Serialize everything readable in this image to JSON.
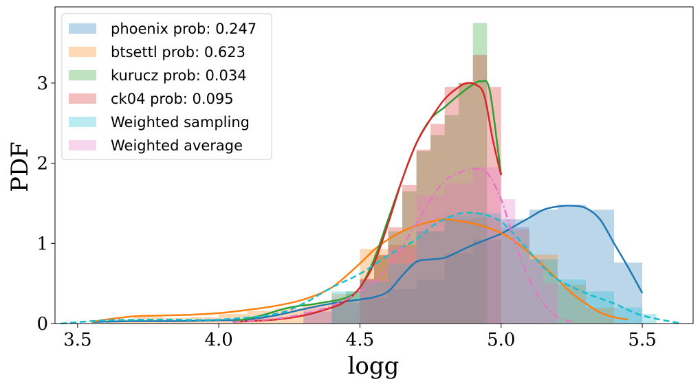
{
  "chart_data": {
    "type": "histogram+kde",
    "xlabel": "logg",
    "ylabel": "PDF",
    "xlim": [
      3.42,
      5.68
    ],
    "ylim": [
      0,
      3.95
    ],
    "xticks": [
      "3.5",
      "4.0",
      "4.5",
      "5.0",
      "5.5"
    ],
    "xtick_values": [
      3.5,
      4.0,
      4.5,
      5.0,
      5.5
    ],
    "yticks": [
      "0",
      "1",
      "2",
      "3"
    ],
    "ytick_values": [
      0,
      1,
      2,
      3
    ],
    "grid": false,
    "legend_position": "top-left",
    "series": [
      {
        "name": "phoenix prob: 0.247",
        "color": "#1f77b4",
        "linestyle": "solid",
        "hist_edges": [
          4.3,
          4.4,
          4.5,
          4.6,
          4.7,
          4.8,
          4.9,
          5.0,
          5.1,
          5.2,
          5.3,
          5.4,
          5.5
        ],
        "hist_heights": [
          0.15,
          0.26,
          0.32,
          0.43,
          0.55,
          0.88,
          1.05,
          1.3,
          1.42,
          1.48,
          1.42,
          0.76
        ],
        "kde_x": [
          3.55,
          3.7,
          3.85,
          4.0,
          4.1,
          4.2,
          4.3,
          4.4,
          4.5,
          4.55,
          4.6,
          4.65,
          4.7,
          4.75,
          4.8,
          4.85,
          4.9,
          4.95,
          5.0,
          5.05,
          5.1,
          5.15,
          5.2,
          5.25,
          5.3,
          5.35,
          5.4,
          5.45,
          5.5
        ],
        "kde_y": [
          0.02,
          0.03,
          0.03,
          0.04,
          0.05,
          0.1,
          0.18,
          0.25,
          0.3,
          0.33,
          0.4,
          0.6,
          0.77,
          0.8,
          0.82,
          0.9,
          0.98,
          1.05,
          1.12,
          1.22,
          1.32,
          1.42,
          1.46,
          1.47,
          1.44,
          1.3,
          1.0,
          0.7,
          0.38
        ]
      },
      {
        "name": "btsettl prob: 0.623",
        "color": "#ff7f0e",
        "linestyle": "solid",
        "hist_edges": [
          3.6,
          3.7,
          3.8,
          3.9,
          4.0,
          4.1,
          4.2,
          4.3,
          4.4,
          4.5,
          4.6,
          4.7,
          4.8,
          4.9,
          5.0,
          5.1,
          5.2,
          5.3,
          5.4
        ],
        "hist_heights": [
          0.05,
          0.08,
          0.07,
          0.08,
          0.12,
          0.16,
          0.19,
          0.24,
          0.37,
          0.93,
          0.98,
          1.15,
          1.3,
          1.32,
          1.17,
          0.86,
          0.48,
          0.2,
          0.05
        ],
        "kde_x": [
          3.55,
          3.6,
          3.7,
          3.8,
          3.9,
          4.0,
          4.1,
          4.2,
          4.3,
          4.4,
          4.5,
          4.55,
          4.6,
          4.65,
          4.7,
          4.75,
          4.8,
          4.85,
          4.9,
          4.95,
          5.0,
          5.05,
          5.1,
          5.15,
          5.2,
          5.25,
          5.3,
          5.35,
          5.4,
          5.45
        ],
        "kde_y": [
          0.02,
          0.05,
          0.09,
          0.1,
          0.11,
          0.13,
          0.17,
          0.22,
          0.3,
          0.45,
          0.75,
          0.92,
          1.05,
          1.15,
          1.22,
          1.27,
          1.3,
          1.28,
          1.25,
          1.2,
          1.13,
          1.02,
          0.88,
          0.72,
          0.55,
          0.38,
          0.25,
          0.14,
          0.08,
          0.05
        ]
      },
      {
        "name": "kurucz prob: 0.034",
        "color": "#2ca02c",
        "linestyle": "solid",
        "hist_edges": [
          4.4,
          4.45,
          4.5,
          4.55,
          4.6,
          4.65,
          4.7,
          4.75,
          4.8,
          4.85,
          4.9,
          4.95
        ],
        "hist_heights": [
          0.25,
          0.4,
          0.55,
          0.85,
          1.15,
          1.65,
          2.15,
          2.35,
          2.6,
          3.0,
          3.75
        ],
        "kde_x": [
          4.05,
          4.15,
          4.25,
          4.35,
          4.45,
          4.5,
          4.55,
          4.6,
          4.65,
          4.7,
          4.75,
          4.8,
          4.85,
          4.9,
          4.93,
          4.96,
          5.0
        ],
        "kde_y": [
          0.02,
          0.1,
          0.2,
          0.25,
          0.32,
          0.45,
          0.8,
          1.3,
          1.8,
          2.25,
          2.55,
          2.7,
          2.85,
          2.98,
          3.02,
          2.9,
          1.85
        ]
      },
      {
        "name": "ck04 prob: 0.095",
        "color": "#d62728",
        "linestyle": "solid",
        "hist_edges": [
          4.5,
          4.55,
          4.6,
          4.65,
          4.7,
          4.75,
          4.8,
          4.85,
          4.9,
          4.95,
          5.0
        ],
        "hist_heights": [
          0.56,
          0.86,
          1.2,
          1.73,
          2.17,
          2.49,
          2.95,
          3.0,
          3.35,
          2.95
        ],
        "kde_x": [
          4.05,
          4.2,
          4.3,
          4.4,
          4.45,
          4.5,
          4.55,
          4.6,
          4.65,
          4.7,
          4.75,
          4.8,
          4.85,
          4.88,
          4.91,
          4.94,
          4.97,
          5.0
        ],
        "kde_y": [
          0.02,
          0.05,
          0.1,
          0.2,
          0.28,
          0.45,
          0.75,
          1.25,
          1.8,
          2.25,
          2.55,
          2.8,
          2.95,
          3.0,
          2.98,
          2.85,
          2.3,
          1.85
        ]
      },
      {
        "name": "Weighted sampling",
        "color": "#17becf",
        "linestyle": "dashed",
        "hist_edges": [
          4.4,
          4.5,
          4.6,
          4.7,
          4.8,
          4.9,
          5.0,
          5.1,
          5.2,
          5.3,
          5.4,
          5.5,
          5.55
        ],
        "hist_heights": [
          0.4,
          0.52,
          0.75,
          1.15,
          1.35,
          1.38,
          1.2,
          0.8,
          0.55,
          0.4,
          0.2,
          0.12
        ],
        "kde_x": [
          3.44,
          3.6,
          3.8,
          4.0,
          4.2,
          4.3,
          4.4,
          4.5,
          4.6,
          4.7,
          4.75,
          4.8,
          4.85,
          4.9,
          4.95,
          5.0,
          5.05,
          5.1,
          5.15,
          5.2,
          5.3,
          5.4,
          5.5,
          5.64
        ],
        "kde_y": [
          0.0,
          0.04,
          0.05,
          0.05,
          0.12,
          0.25,
          0.45,
          0.62,
          0.85,
          1.05,
          1.2,
          1.3,
          1.37,
          1.38,
          1.35,
          1.27,
          1.1,
          0.9,
          0.7,
          0.55,
          0.38,
          0.25,
          0.1,
          0.0
        ]
      },
      {
        "name": "Weighted average",
        "color": "#e377c2",
        "linestyle": "dashdot",
        "hist_edges": [
          4.3,
          4.4,
          4.5,
          4.6,
          4.7,
          4.8,
          4.9,
          5.0,
          5.05,
          5.1,
          5.15,
          5.2
        ],
        "hist_heights": [
          0.2,
          0.3,
          0.55,
          0.95,
          1.6,
          1.75,
          1.95,
          1.55,
          1.2,
          0.8,
          0.5
        ],
        "kde_x": [
          4.05,
          4.2,
          4.3,
          4.4,
          4.5,
          4.6,
          4.7,
          4.75,
          4.8,
          4.85,
          4.9,
          4.95,
          5.0,
          5.05,
          5.1,
          5.15,
          5.2,
          5.25
        ],
        "kde_y": [
          0.02,
          0.06,
          0.12,
          0.22,
          0.4,
          0.7,
          1.25,
          1.55,
          1.78,
          1.88,
          1.93,
          1.88,
          1.55,
          1.0,
          0.55,
          0.25,
          0.08,
          0.02
        ]
      }
    ]
  }
}
